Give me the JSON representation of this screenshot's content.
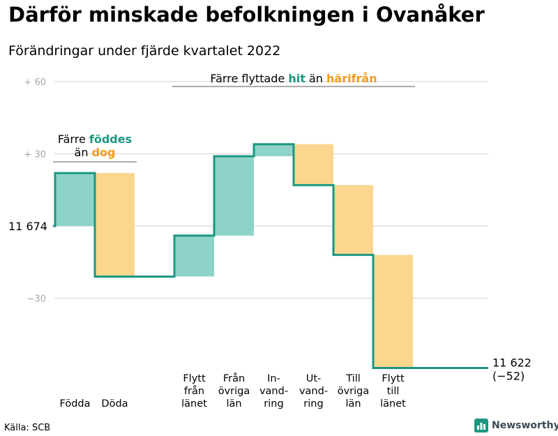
{
  "title": "Därför minskade befolkningen i Ovanåker",
  "subtitle": "Förändringar under fjärde kvartalet 2022",
  "source": "Källa: SCB",
  "brand": "Newsworthy",
  "colors": {
    "teal": "#1a9780",
    "teal_fill": "#8ed3c9",
    "orange": "#f29a1f",
    "orange_fill": "#fad68e",
    "grid": "#d9d9d9",
    "axis_text": "#a6a6a6"
  },
  "chart_data": {
    "type": "waterfall",
    "start": {
      "value": 11674,
      "label": "11 674"
    },
    "end": {
      "value": 11622,
      "label": "11 622",
      "change_label": "(−52)"
    },
    "steps": [
      {
        "label_lines": [
          "Födda"
        ],
        "value": 22,
        "kind": "gain"
      },
      {
        "label_lines": [
          "Döda"
        ],
        "value": -43,
        "kind": "loss"
      },
      {
        "label_lines": [
          "Flytt",
          "från",
          "länet"
        ],
        "value": 17,
        "kind": "gain"
      },
      {
        "label_lines": [
          "Från",
          "övriga",
          "län"
        ],
        "value": 33,
        "kind": "gain"
      },
      {
        "label_lines": [
          "In-",
          "vand-",
          "ring"
        ],
        "value": 5,
        "kind": "gain"
      },
      {
        "label_lines": [
          "Ut-",
          "vand-",
          "ring"
        ],
        "value": -17,
        "kind": "loss"
      },
      {
        "label_lines": [
          "Till",
          "övriga",
          "län"
        ],
        "value": -29,
        "kind": "loss"
      },
      {
        "label_lines": [
          "Flytt",
          "till",
          "länet"
        ],
        "value": -47,
        "kind": "loss"
      }
    ],
    "y_ticks": [
      {
        "value": 60,
        "label": "+ 60"
      },
      {
        "value": 30,
        "label": "+ 30"
      },
      {
        "value": -30,
        "label": "−30"
      }
    ],
    "ylim": [
      -55,
      65
    ],
    "annotations": [
      {
        "parts": [
          {
            "text": "Färre ",
            "color": "black"
          },
          {
            "text": "föddes",
            "color": "teal"
          }
        ],
        "line2": [
          {
            "text": "än ",
            "color": "black"
          },
          {
            "text": "dog",
            "color": "orange"
          }
        ],
        "span": [
          0,
          1
        ]
      },
      {
        "parts": [
          {
            "text": "Färre flyttade ",
            "color": "black"
          },
          {
            "text": "hit",
            "color": "teal"
          },
          {
            "text": " än ",
            "color": "black"
          },
          {
            "text": "härifrån",
            "color": "orange"
          }
        ],
        "span": [
          2,
          7
        ]
      }
    ]
  }
}
